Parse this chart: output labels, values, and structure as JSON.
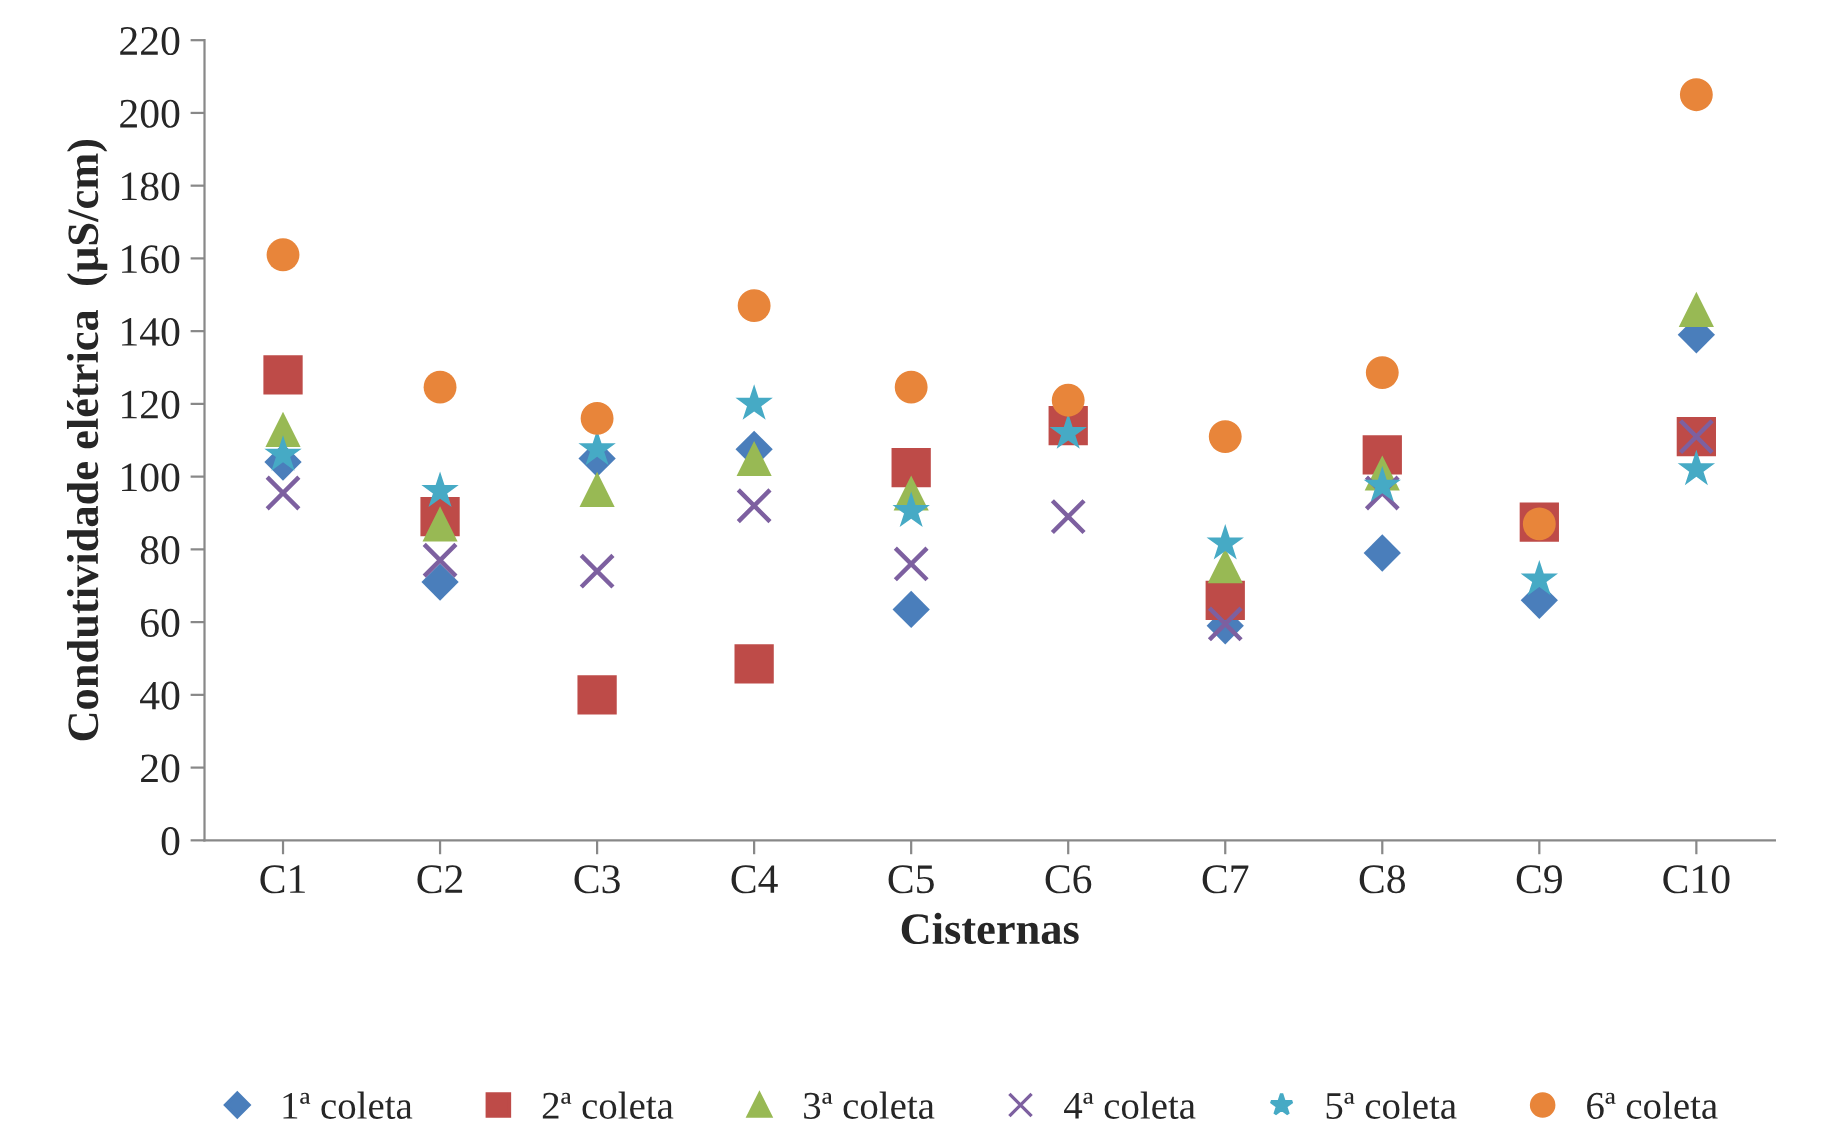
{
  "chart_data": {
    "type": "scatter",
    "xlabel": "Cisternas",
    "ylabel": "Condutividade elétrica  (µS/cm)",
    "categories": [
      "C1",
      "C2",
      "C3",
      "C4",
      "C5",
      "C6",
      "C7",
      "C8",
      "C9",
      "C10"
    ],
    "ylim": [
      0,
      220
    ],
    "yticks": [
      0,
      20,
      40,
      60,
      80,
      100,
      120,
      140,
      160,
      180,
      200,
      220
    ],
    "grid": false,
    "legend": "bottom",
    "series": [
      {
        "name": "1ª coleta",
        "color": "#4a7ebb",
        "marker": "diamond",
        "values": [
          104,
          71,
          105,
          107.5,
          63.5,
          null,
          59,
          79,
          66,
          139
        ]
      },
      {
        "name": "2ª coleta",
        "color": "#be4b48",
        "marker": "square",
        "values": [
          128,
          89,
          40,
          48.5,
          102.5,
          114,
          66,
          106,
          87.5,
          111
        ]
      },
      {
        "name": "3ª coleta",
        "color": "#98b954",
        "marker": "triangle",
        "values": [
          113,
          87,
          96.5,
          105,
          95.5,
          null,
          75.5,
          101,
          null,
          146
        ]
      },
      {
        "name": "4ª coleta",
        "color": "#7d60a0",
        "marker": "cross",
        "values": [
          95.5,
          77,
          74,
          92,
          76,
          89,
          59.5,
          95.5,
          null,
          111
        ]
      },
      {
        "name": "5ª coleta",
        "color": "#46aac5",
        "marker": "star",
        "values": [
          106,
          96,
          107.5,
          120,
          90.5,
          112,
          81.6,
          97.5,
          71.7,
          102
        ]
      },
      {
        "name": "6ª coleta",
        "color": "#e8853a",
        "marker": "circle",
        "values": [
          161,
          124.6,
          116,
          147,
          124.6,
          121,
          111,
          128.6,
          87,
          205
        ]
      }
    ]
  }
}
